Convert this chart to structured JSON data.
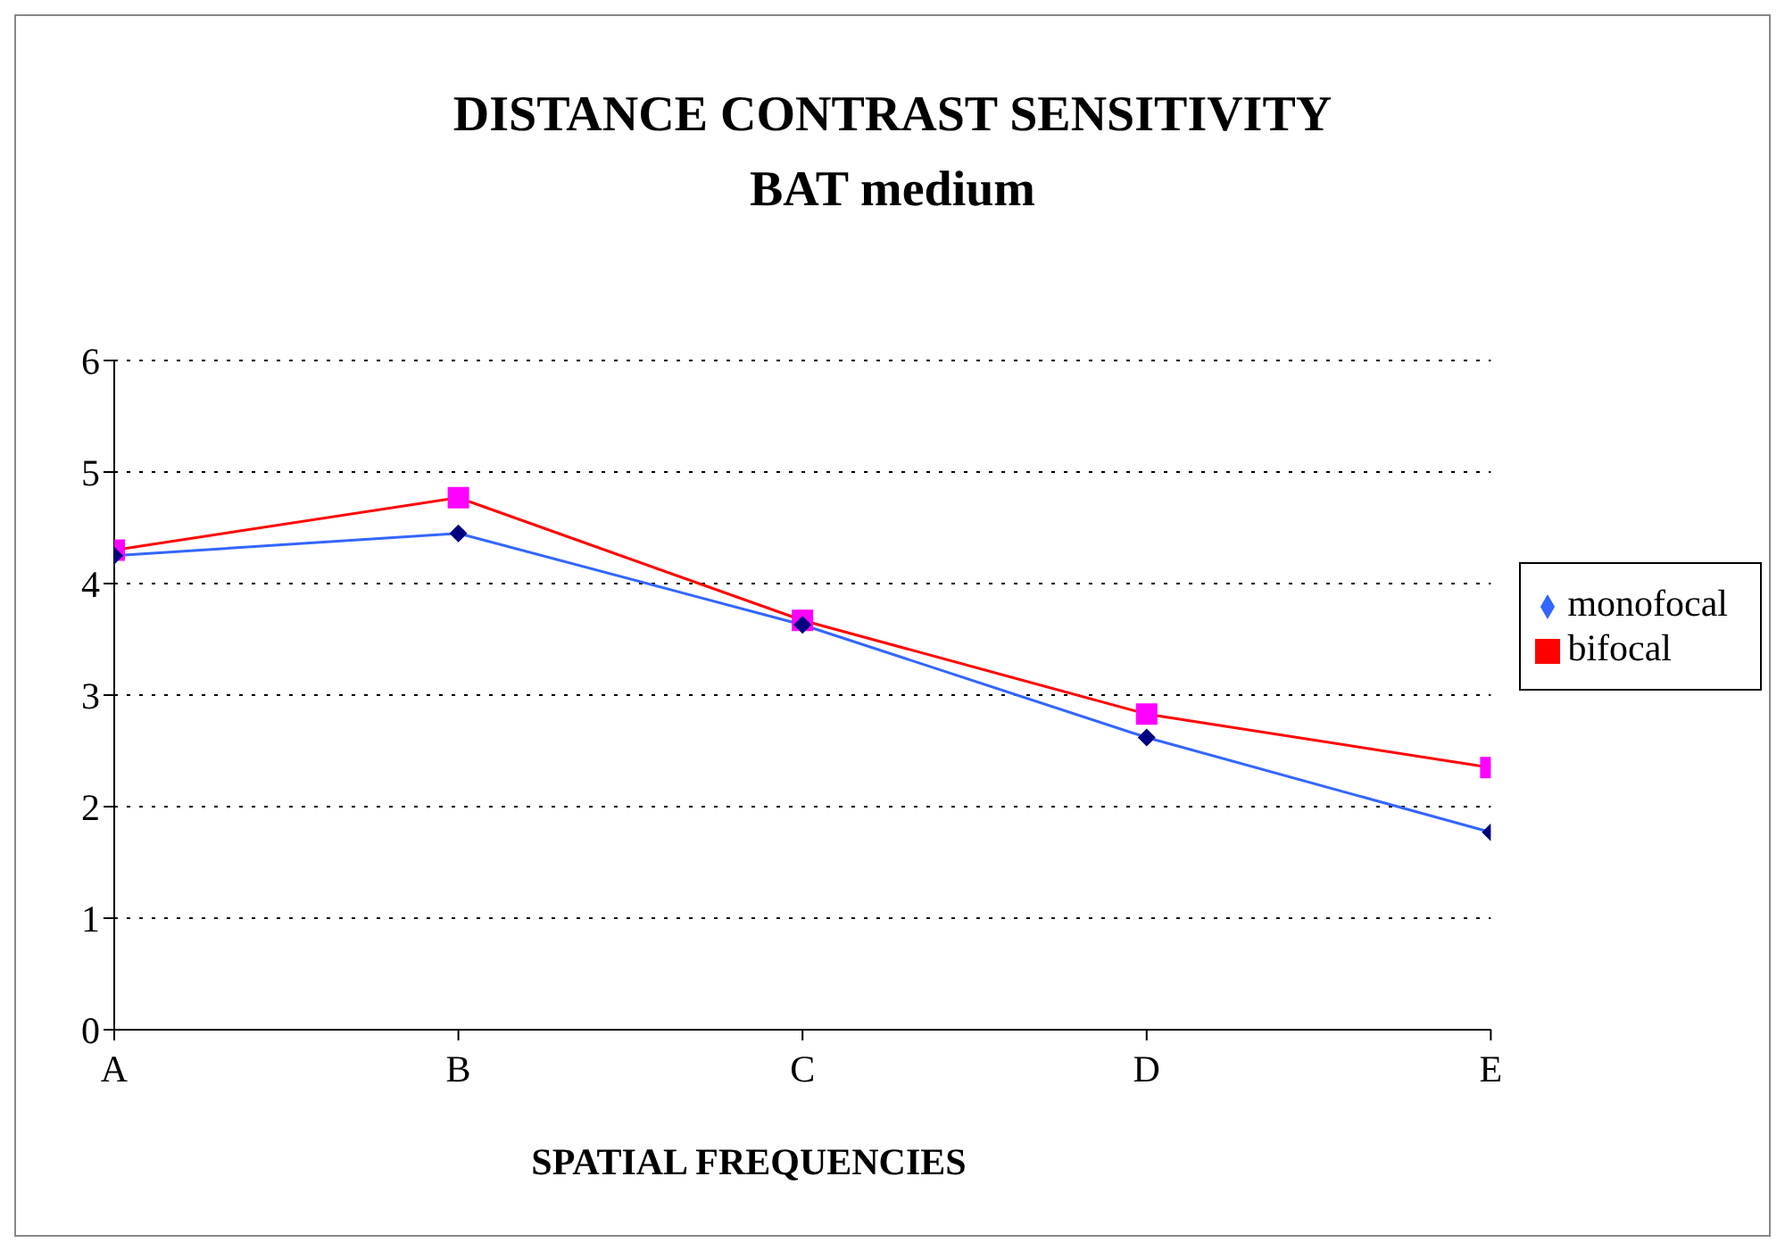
{
  "chart_data": {
    "type": "line",
    "title": "DISTANCE CONTRAST SENSITIVITY",
    "subtitle": "BAT medium",
    "xlabel": "SPATIAL FREQUENCIES",
    "categories": [
      "A",
      "B",
      "C",
      "D",
      "E"
    ],
    "series": [
      {
        "name": "monofocal",
        "color": "#3366ff",
        "marker": "diamond",
        "values": [
          4.25,
          4.45,
          3.63,
          2.62,
          1.77
        ]
      },
      {
        "name": "bifocal",
        "color": "#ff0000",
        "marker": "square",
        "values": [
          4.3,
          4.77,
          3.67,
          2.83,
          2.35
        ]
      }
    ],
    "ylim": [
      0,
      6
    ],
    "yticks": [
      0,
      1,
      2,
      3,
      4,
      5,
      6
    ],
    "grid": "y",
    "legend": "right"
  }
}
